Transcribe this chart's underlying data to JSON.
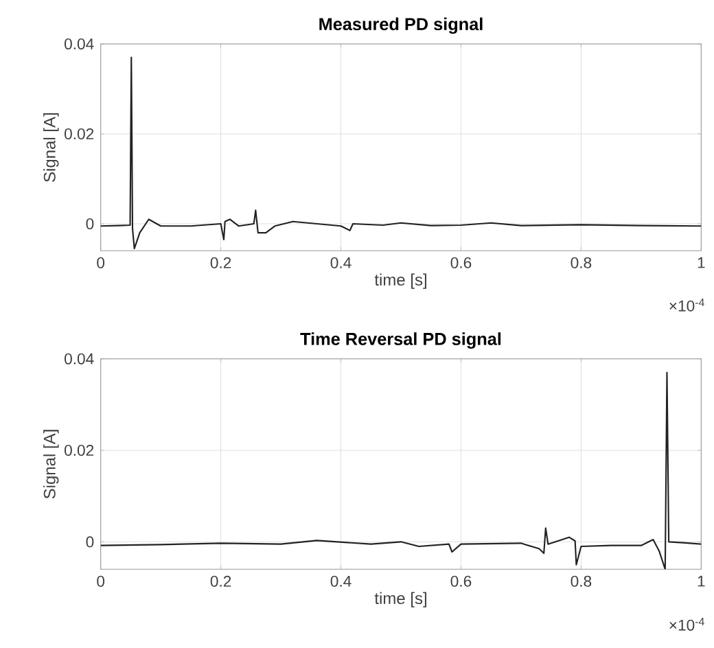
{
  "chart_data": [
    {
      "type": "line",
      "title": "Measured PD signal",
      "xlabel": "time [s]",
      "ylabel": "Signal [A]",
      "x": [
        0,
        0.03,
        0.049,
        0.051,
        0.053,
        0.056,
        0.065,
        0.08,
        0.1,
        0.15,
        0.2,
        0.205,
        0.207,
        0.215,
        0.23,
        0.255,
        0.258,
        0.262,
        0.275,
        0.29,
        0.32,
        0.36,
        0.4,
        0.415,
        0.42,
        0.47,
        0.5,
        0.55,
        0.6,
        0.65,
        0.7,
        0.8,
        0.9,
        1.0
      ],
      "series": [
        {
          "color": "#222222",
          "values": [
            -0.0005,
            -0.0004,
            -0.0003,
            0.037,
            -0.001,
            -0.0055,
            -0.002,
            0.001,
            -0.0005,
            -0.0005,
            0,
            -0.0035,
            0.0005,
            0.001,
            -0.0005,
            0,
            0.003,
            -0.002,
            -0.002,
            -0.0005,
            0.0005,
            0,
            -0.0005,
            -0.0015,
            0,
            -0.0003,
            0.0002,
            -0.0004,
            -0.0003,
            0.0002,
            -0.0004,
            -0.0002,
            -0.0004,
            -0.0005
          ]
        }
      ],
      "xlim": [
        0,
        1
      ],
      "ylim": [
        -0.006,
        0.04
      ],
      "xticks": [
        0,
        0.2,
        0.4,
        0.6,
        0.8,
        1
      ],
      "yticks": [
        0,
        0.02,
        0.04
      ],
      "grid": true,
      "marker": "none",
      "line_style": "solid",
      "annotations": [
        "×10$^{-4}$"
      ]
    },
    {
      "type": "line",
      "title": "Time Reversal PD signal",
      "xlabel": "time [s]",
      "ylabel": "Signal [A]",
      "x": [
        0,
        0.1,
        0.2,
        0.3,
        0.36,
        0.45,
        0.5,
        0.53,
        0.58,
        0.585,
        0.6,
        0.7,
        0.73,
        0.738,
        0.741,
        0.745,
        0.78,
        0.79,
        0.792,
        0.8,
        0.85,
        0.9,
        0.92,
        0.93,
        0.94,
        0.943,
        0.946,
        0.97,
        1.0
      ],
      "series": [
        {
          "color": "#222222",
          "values": [
            -0.0008,
            -0.0006,
            -0.0003,
            -0.0005,
            0.0003,
            -0.0005,
            0,
            -0.001,
            -0.0005,
            -0.0022,
            -0.0005,
            -0.0003,
            -0.0015,
            -0.0025,
            0.003,
            -0.0005,
            0.001,
            0.0002,
            -0.005,
            -0.001,
            -0.0008,
            -0.0008,
            0.0005,
            -0.002,
            -0.006,
            0.037,
            0,
            -0.0002,
            -0.0005
          ]
        }
      ],
      "xlim": [
        0,
        1
      ],
      "ylim": [
        -0.006,
        0.04
      ],
      "xticks": [
        0,
        0.2,
        0.4,
        0.6,
        0.8,
        1
      ],
      "yticks": [
        0,
        0.02,
        0.04
      ],
      "grid": true,
      "marker": "none",
      "line_style": "solid",
      "annotations": [
        "×10$^{-4}$"
      ]
    }
  ]
}
